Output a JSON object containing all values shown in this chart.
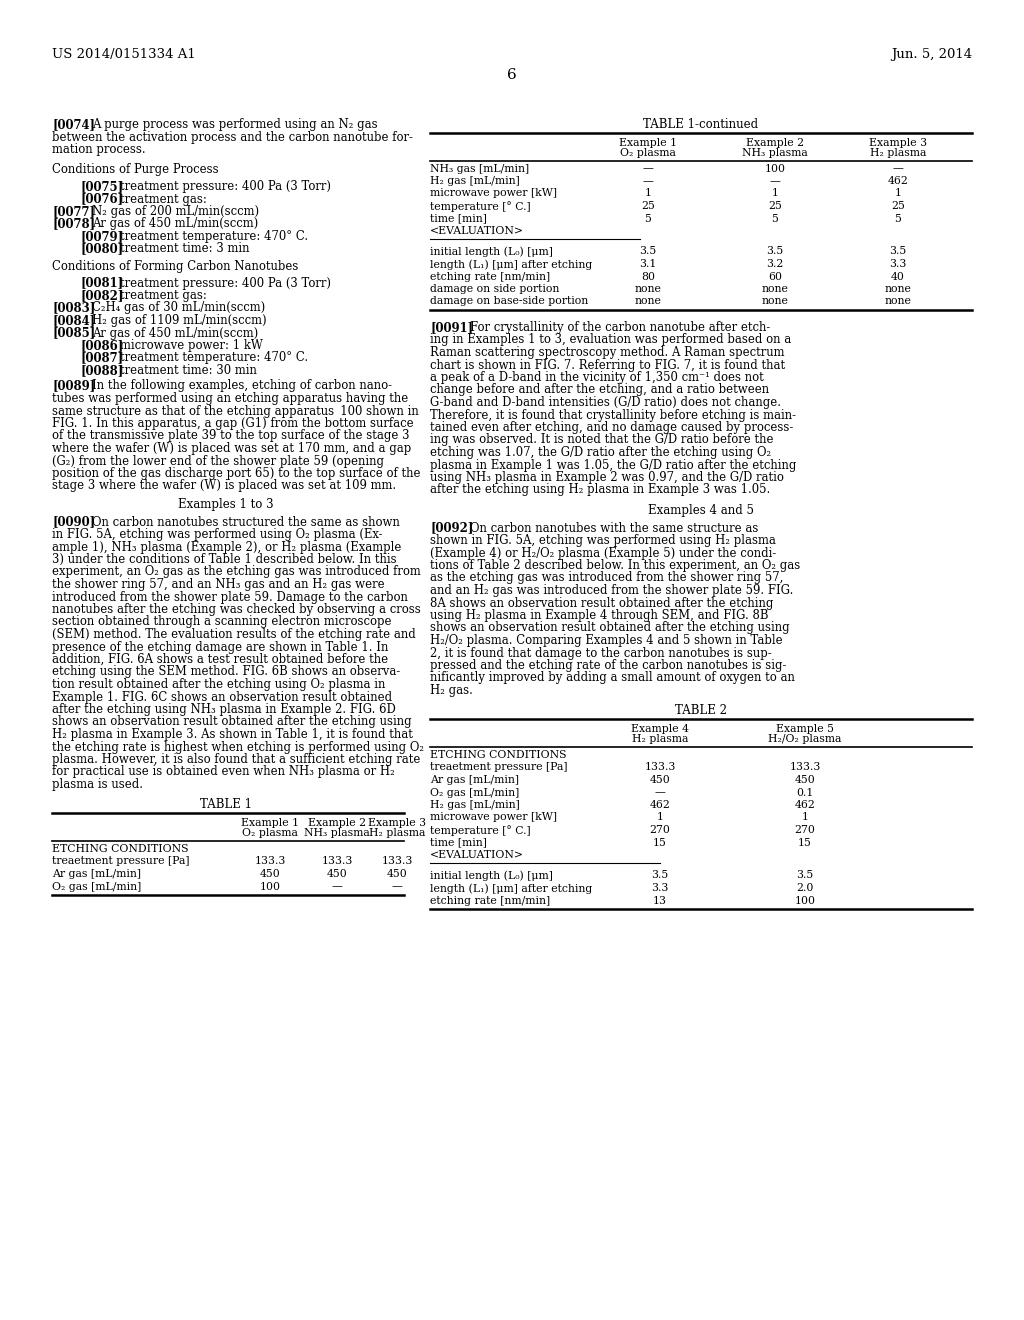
{
  "background_color": "#ffffff",
  "header_left": "US 2014/0151334 A1",
  "header_right": "Jun. 5, 2014",
  "page_number": "6",
  "table1_cont_rows_s1": [
    [
      "NH₃ gas [mL/min]",
      "—",
      "100",
      "—"
    ],
    [
      "H₂ gas [mL/min]",
      "—",
      "—",
      "462"
    ],
    [
      "microwave power [kW]",
      "1",
      "1",
      "1"
    ],
    [
      "temperature [° C.]",
      "25",
      "25",
      "25"
    ],
    [
      "time [min]",
      "5",
      "5",
      "5"
    ],
    [
      "<EVALUATION>",
      "",
      "",
      ""
    ]
  ],
  "table1_cont_rows_s2": [
    [
      "initial length (L₀) [μm]",
      "3.5",
      "3.5",
      "3.5"
    ],
    [
      "length (L₁) [μm] after etching",
      "3.1",
      "3.2",
      "3.3"
    ],
    [
      "etching rate [nm/min]",
      "80",
      "60",
      "40"
    ],
    [
      "damage on side portion",
      "none",
      "none",
      "none"
    ],
    [
      "damage on base-side portion",
      "none",
      "none",
      "none"
    ]
  ],
  "table1_rows_s1": [
    [
      "treaetment pressure [Pa]",
      "133.3",
      "133.3",
      "133.3"
    ],
    [
      "Ar gas [mL/min]",
      "450",
      "450",
      "450"
    ],
    [
      "O₂ gas [mL/min]",
      "100",
      "—",
      "—"
    ]
  ],
  "table2_rows_s1": [
    [
      "treaetment pressure [Pa]",
      "133.3",
      "133.3"
    ],
    [
      "Ar gas [mL/min]",
      "450",
      "450"
    ],
    [
      "O₂ gas [mL/min]",
      "—",
      "0.1"
    ],
    [
      "H₂ gas [mL/min]",
      "462",
      "462"
    ],
    [
      "microwave power [kW]",
      "1",
      "1"
    ],
    [
      "temperature [° C.]",
      "270",
      "270"
    ],
    [
      "time [min]",
      "15",
      "15"
    ],
    [
      "<EVALUATION>",
      "",
      ""
    ]
  ],
  "table2_rows_s2": [
    [
      "initial length (L₀) [μm]",
      "3.5",
      "3.5"
    ],
    [
      "length (L₁) [μm] after etching",
      "3.3",
      "2.0"
    ],
    [
      "etching rate [nm/min]",
      "13",
      "100"
    ]
  ]
}
